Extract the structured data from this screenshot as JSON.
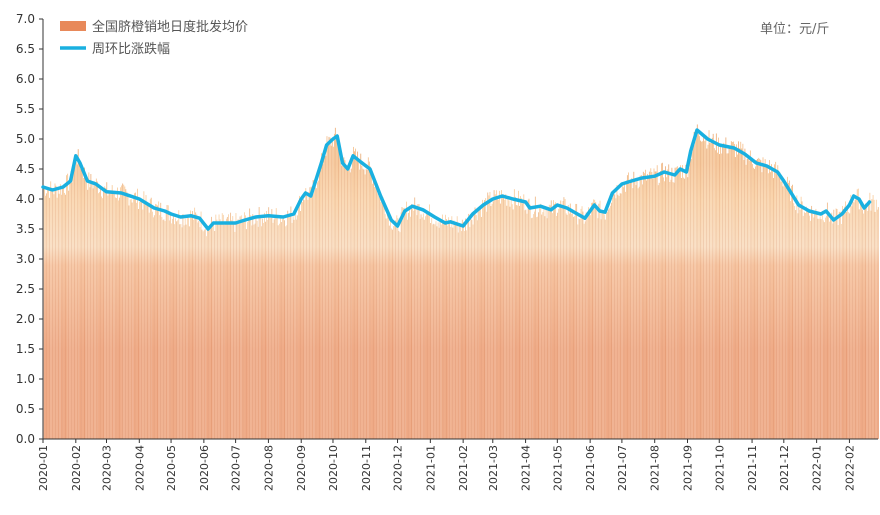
{
  "chart_data": {
    "type": "bar",
    "unit_label": "单位：元/斤",
    "ylim": [
      0,
      7
    ],
    "y_ticks": [
      "0.0",
      "0.5",
      "1.0",
      "1.5",
      "2.0",
      "2.5",
      "3.0",
      "3.5",
      "4.0",
      "4.5",
      "5.0",
      "5.5",
      "6.0",
      "6.5",
      "7.0"
    ],
    "x_ticks": [
      "2020-01",
      "2020-02",
      "2020-03",
      "2020-04",
      "2020-05",
      "2020-06",
      "2020-07",
      "2020-08",
      "2020-09",
      "2020-10",
      "2020-11",
      "2020-12",
      "2021-01",
      "2021-02",
      "2021-03",
      "2021-04",
      "2021-05",
      "2021-06",
      "2021-07",
      "2021-08",
      "2021-09",
      "2021-10",
      "2021-11",
      "2021-12",
      "2022-01",
      "2022-02"
    ],
    "legend": [
      {
        "name": "全国脐橙销地日度批发均价",
        "color": "#e8895a"
      },
      {
        "name": "周环比涨跌幅",
        "color": "#1ab0e0"
      }
    ],
    "line_points": [
      [
        "2020-01-01",
        4.2
      ],
      [
        "2020-01-10",
        4.15
      ],
      [
        "2020-01-20",
        4.2
      ],
      [
        "2020-01-27",
        4.3
      ],
      [
        "2020-02-01",
        4.72
      ],
      [
        "2020-02-05",
        4.6
      ],
      [
        "2020-02-12",
        4.3
      ],
      [
        "2020-02-20",
        4.25
      ],
      [
        "2020-03-01",
        4.12
      ],
      [
        "2020-03-15",
        4.1
      ],
      [
        "2020-04-01",
        4.0
      ],
      [
        "2020-04-15",
        3.85
      ],
      [
        "2020-04-25",
        3.8
      ],
      [
        "2020-05-01",
        3.75
      ],
      [
        "2020-05-10",
        3.7
      ],
      [
        "2020-05-20",
        3.72
      ],
      [
        "2020-05-28",
        3.68
      ],
      [
        "2020-06-05",
        3.5
      ],
      [
        "2020-06-10",
        3.6
      ],
      [
        "2020-06-20",
        3.6
      ],
      [
        "2020-07-01",
        3.6
      ],
      [
        "2020-07-10",
        3.65
      ],
      [
        "2020-07-20",
        3.7
      ],
      [
        "2020-08-01",
        3.72
      ],
      [
        "2020-08-15",
        3.7
      ],
      [
        "2020-08-25",
        3.75
      ],
      [
        "2020-09-01",
        4.0
      ],
      [
        "2020-09-05",
        4.1
      ],
      [
        "2020-09-10",
        4.05
      ],
      [
        "2020-09-20",
        4.6
      ],
      [
        "2020-09-25",
        4.9
      ],
      [
        "2020-10-01",
        5.0
      ],
      [
        "2020-10-05",
        5.05
      ],
      [
        "2020-10-10",
        4.6
      ],
      [
        "2020-10-15",
        4.5
      ],
      [
        "2020-10-20",
        4.72
      ],
      [
        "2020-10-27",
        4.62
      ],
      [
        "2020-11-05",
        4.5
      ],
      [
        "2020-11-15",
        4.05
      ],
      [
        "2020-11-25",
        3.65
      ],
      [
        "2020-12-01",
        3.55
      ],
      [
        "2020-12-08",
        3.8
      ],
      [
        "2020-12-15",
        3.88
      ],
      [
        "2020-12-25",
        3.82
      ],
      [
        "2021-01-05",
        3.7
      ],
      [
        "2021-01-15",
        3.6
      ],
      [
        "2021-01-20",
        3.62
      ],
      [
        "2021-02-01",
        3.55
      ],
      [
        "2021-02-10",
        3.75
      ],
      [
        "2021-02-20",
        3.9
      ],
      [
        "2021-03-01",
        4.0
      ],
      [
        "2021-03-10",
        4.05
      ],
      [
        "2021-03-20",
        4.0
      ],
      [
        "2021-04-01",
        3.95
      ],
      [
        "2021-04-05",
        3.85
      ],
      [
        "2021-04-15",
        3.88
      ],
      [
        "2021-04-25",
        3.82
      ],
      [
        "2021-05-01",
        3.9
      ],
      [
        "2021-05-10",
        3.85
      ],
      [
        "2021-05-20",
        3.75
      ],
      [
        "2021-05-27",
        3.68
      ],
      [
        "2021-06-05",
        3.9
      ],
      [
        "2021-06-10",
        3.8
      ],
      [
        "2021-06-15",
        3.78
      ],
      [
        "2021-06-22",
        4.1
      ],
      [
        "2021-07-01",
        4.25
      ],
      [
        "2021-07-10",
        4.3
      ],
      [
        "2021-07-20",
        4.35
      ],
      [
        "2021-08-01",
        4.38
      ],
      [
        "2021-08-10",
        4.45
      ],
      [
        "2021-08-20",
        4.4
      ],
      [
        "2021-08-25",
        4.5
      ],
      [
        "2021-08-31",
        4.45
      ],
      [
        "2021-09-04",
        4.8
      ],
      [
        "2021-09-10",
        5.15
      ],
      [
        "2021-09-20",
        5.0
      ],
      [
        "2021-10-01",
        4.9
      ],
      [
        "2021-10-15",
        4.85
      ],
      [
        "2021-10-25",
        4.75
      ],
      [
        "2021-11-05",
        4.6
      ],
      [
        "2021-11-15",
        4.55
      ],
      [
        "2021-11-25",
        4.45
      ],
      [
        "2021-12-01",
        4.3
      ],
      [
        "2021-12-08",
        4.1
      ],
      [
        "2021-12-15",
        3.9
      ],
      [
        "2021-12-25",
        3.8
      ],
      [
        "2022-01-05",
        3.75
      ],
      [
        "2022-01-10",
        3.8
      ],
      [
        "2022-01-17",
        3.65
      ],
      [
        "2022-01-25",
        3.75
      ],
      [
        "2022-02-01",
        3.9
      ],
      [
        "2022-02-05",
        4.05
      ],
      [
        "2022-02-10",
        4.0
      ],
      [
        "2022-02-15",
        3.85
      ],
      [
        "2022-02-20",
        3.95
      ]
    ]
  }
}
